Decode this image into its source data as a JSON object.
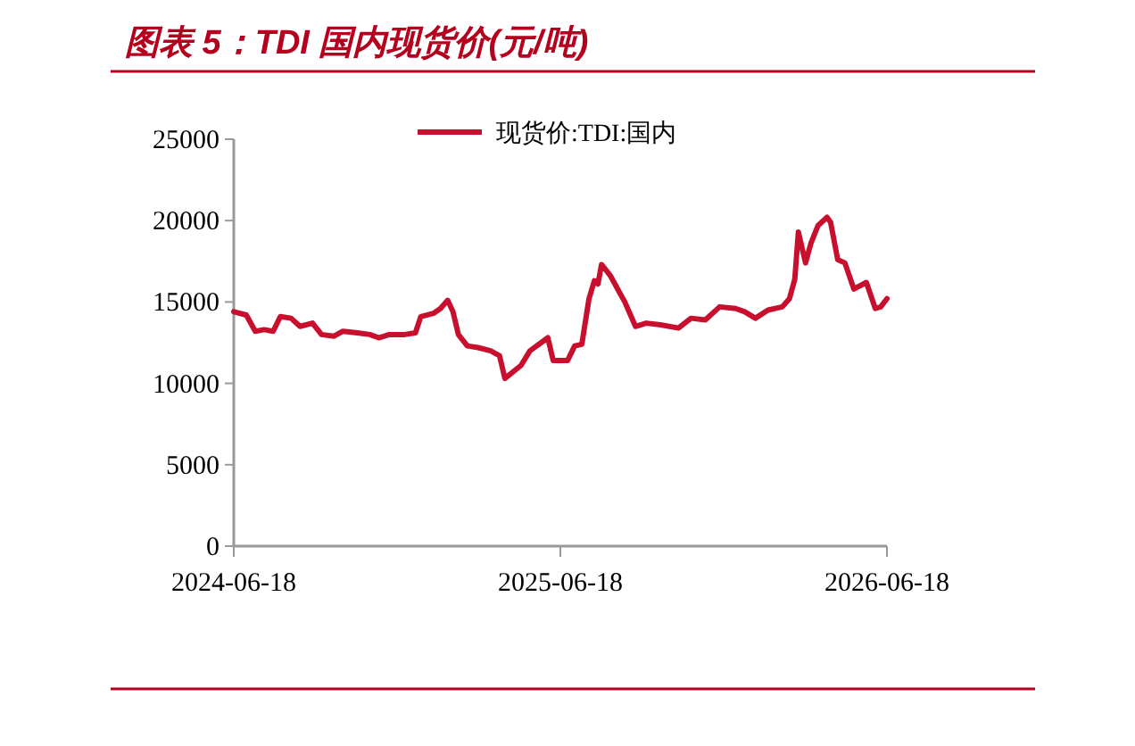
{
  "chart_data": {
    "type": "line",
    "title": "图表 5：TDI 国内现货价(元/吨)",
    "x": [
      "2024-06-18",
      "2024-07-02",
      "2024-07-12",
      "2024-07-22",
      "2024-08-01",
      "2024-08-09",
      "2024-08-21",
      "2024-08-31",
      "2024-09-14",
      "2024-09-24",
      "2024-10-08",
      "2024-10-18",
      "2024-11-03",
      "2024-11-17",
      "2024-11-27",
      "2024-12-09",
      "2024-12-26",
      "2025-01-07",
      "2025-01-13",
      "2025-01-27",
      "2025-02-04",
      "2025-02-12",
      "2025-02-18",
      "2025-02-24",
      "2025-03-06",
      "2025-03-18",
      "2025-04-01",
      "2025-04-11",
      "2025-04-17",
      "2025-05-05",
      "2025-05-15",
      "2025-06-04",
      "2025-06-10",
      "2025-06-26",
      "2025-07-04",
      "2025-07-12",
      "2025-07-20",
      "2025-07-26",
      "2025-07-30",
      "2025-08-03",
      "2025-08-13",
      "2025-08-29",
      "2025-09-10",
      "2025-09-22",
      "2025-10-08",
      "2025-10-28",
      "2025-11-11",
      "2025-11-27",
      "2025-12-13",
      "2025-12-31",
      "2026-01-10",
      "2026-01-22",
      "2026-02-05",
      "2026-02-21",
      "2026-03-01",
      "2026-03-07",
      "2026-03-11",
      "2026-03-19",
      "2026-03-25",
      "2026-04-02",
      "2026-04-12",
      "2026-04-16",
      "2026-04-24",
      "2026-05-02",
      "2026-05-12",
      "2026-05-26",
      "2026-06-05",
      "2026-06-11",
      "2026-06-18"
    ],
    "series": [
      {
        "name": "现货价:TDI:国内",
        "color": "#c8102e",
        "values": [
          14400,
          14200,
          13200,
          13300,
          13200,
          14100,
          14000,
          13500,
          13700,
          13000,
          12900,
          13200,
          13100,
          13000,
          12800,
          13000,
          13000,
          13100,
          14100,
          14300,
          14600,
          15100,
          14400,
          13000,
          12300,
          12200,
          12000,
          11700,
          10300,
          11100,
          12000,
          12800,
          11400,
          11400,
          12300,
          12400,
          15200,
          16300,
          16100,
          17300,
          16600,
          15000,
          13500,
          13700,
          13600,
          13400,
          14000,
          13900,
          14700,
          14600,
          14400,
          14000,
          14500,
          14700,
          15200,
          16400,
          19300,
          17400,
          18600,
          19700,
          20200,
          19900,
          17600,
          17400,
          15800,
          16200,
          14600,
          14700,
          15200
        ]
      }
    ],
    "xlim": [
      "2024-06-18",
      "2026-06-18"
    ],
    "xticks": [
      {
        "value": "2024-06-18",
        "label": "2024-06-18"
      },
      {
        "value": "2025-06-18",
        "label": "2025-06-18"
      },
      {
        "value": "2026-06-18",
        "label": "2026-06-18"
      }
    ],
    "ylim": [
      0,
      25000
    ],
    "yticks": [
      0,
      5000,
      10000,
      15000,
      20000,
      25000
    ],
    "grid": false,
    "legend": "top",
    "marker": "none",
    "line_style": "solid"
  }
}
